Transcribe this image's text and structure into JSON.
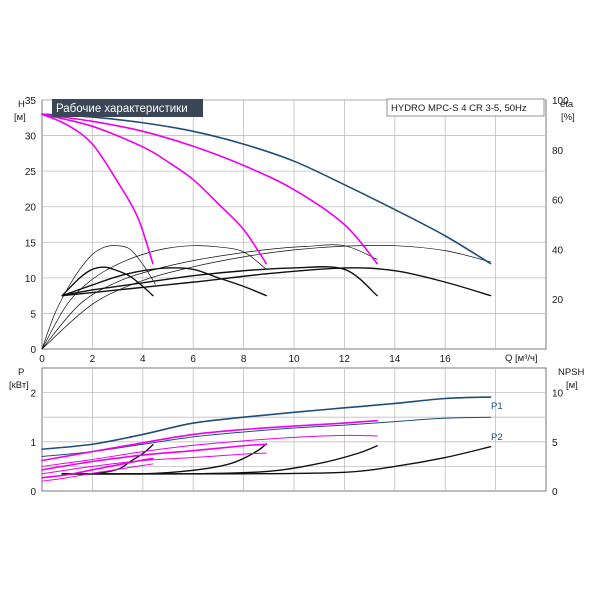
{
  "colors": {
    "navy": "#1f4e79",
    "magenta": "#ee00ee",
    "black": "#111111",
    "grid": "#bfbfbf",
    "title_bg": "#3a4655"
  },
  "chart_data": [
    {
      "type": "line",
      "title": "Рабочие характеристики",
      "model": "HYDRO MPC-S 4 CR 3-5, 50Hz",
      "x_unit_label": "Q [м³/ч]",
      "y_left_label": "H",
      "y_left_unit": "[м]",
      "y_right_label": "eta",
      "y_right_unit": "[%]",
      "xlim": [
        0,
        20
      ],
      "ylim": [
        0,
        35
      ],
      "y_right_lim": [
        0,
        100
      ],
      "x_ticks": [
        "0",
        "2",
        "4",
        "6",
        "8",
        "10",
        "12",
        "14",
        "16"
      ],
      "y_ticks": [
        "0",
        "5",
        "10",
        "15",
        "20",
        "25",
        "30",
        "35"
      ],
      "y_right_ticks": [
        "20",
        "40",
        "60",
        "80",
        "100"
      ],
      "grid": true,
      "head_series": [
        {
          "color": "navy",
          "width": 1.6,
          "points": [
            [
              0,
              33
            ],
            [
              2,
              32.6
            ],
            [
              4,
              31.8
            ],
            [
              6,
              30.6
            ],
            [
              8,
              28.8
            ],
            [
              10,
              26.4
            ],
            [
              12,
              23.1
            ],
            [
              14,
              19.6
            ],
            [
              16,
              15.9
            ],
            [
              17.8,
              12
            ]
          ]
        },
        {
          "color": "magenta",
          "width": 1.6,
          "points": [
            [
              0,
              33
            ],
            [
              2,
              32
            ],
            [
              4,
              30.6
            ],
            [
              6,
              28.5
            ],
            [
              8,
              25.8
            ],
            [
              10,
              22.4
            ],
            [
              12,
              17.5
            ],
            [
              13.3,
              12
            ]
          ]
        },
        {
          "color": "magenta",
          "width": 1.6,
          "points": [
            [
              0,
              33
            ],
            [
              2,
              31.3
            ],
            [
              4,
              28.4
            ],
            [
              5,
              26.3
            ],
            [
              6,
              23.8
            ],
            [
              7,
              20.4
            ],
            [
              8,
              16.8
            ],
            [
              8.9,
              12
            ]
          ]
        },
        {
          "color": "magenta",
          "width": 1.6,
          "points": [
            [
              0,
              33
            ],
            [
              1,
              31.5
            ],
            [
              2,
              28.8
            ],
            [
              3,
              23.5
            ],
            [
              3.8,
              18.5
            ],
            [
              4.4,
              12
            ]
          ]
        }
      ],
      "eta_thin_series": [
        {
          "points": [
            [
              0,
              0
            ],
            [
              0.5,
              14
            ],
            [
              1,
              24
            ],
            [
              1.5,
              32
            ],
            [
              2,
              38
            ],
            [
              2.5,
              41
            ],
            [
              3,
              41.5
            ],
            [
              3.5,
              40
            ],
            [
              4,
              34
            ],
            [
              4.5,
              26
            ]
          ]
        },
        {
          "points": [
            [
              0,
              0
            ],
            [
              1,
              18
            ],
            [
              2,
              28
            ],
            [
              3,
              34
            ],
            [
              4,
              38
            ],
            [
              5,
              40.5
            ],
            [
              6,
              41.5
            ],
            [
              7,
              41
            ],
            [
              8,
              39
            ],
            [
              8.9,
              32
            ]
          ]
        },
        {
          "points": [
            [
              0,
              0
            ],
            [
              1.5,
              18
            ],
            [
              3,
              27
            ],
            [
              4.5,
              32
            ],
            [
              6,
              35.5
            ],
            [
              7.5,
              38
            ],
            [
              9,
              40
            ],
            [
              10.5,
              41.2
            ],
            [
              12,
              41.5
            ],
            [
              13.3,
              36
            ]
          ]
        },
        {
          "points": [
            [
              0,
              0
            ],
            [
              2,
              18
            ],
            [
              4,
              27.5
            ],
            [
              6,
              33
            ],
            [
              8,
              37
            ],
            [
              10,
              39.8
            ],
            [
              12,
              41.3
            ],
            [
              14,
              41.5
            ],
            [
              16,
              39.5
            ],
            [
              17.8,
              35
            ]
          ]
        }
      ],
      "eta_thick_series": [
        {
          "points": [
            [
              0.8,
              7.5
            ],
            [
              1.5,
              10
            ],
            [
              2,
              11.2
            ],
            [
              2.5,
              11.5
            ],
            [
              3,
              11
            ],
            [
              3.5,
              10.2
            ],
            [
              4,
              8.8
            ],
            [
              4.4,
              7.5
            ]
          ]
        },
        {
          "points": [
            [
              0.8,
              7.5
            ],
            [
              2,
              9
            ],
            [
              3,
              10.2
            ],
            [
              4,
              11
            ],
            [
              5,
              11.4
            ],
            [
              6,
              11.2
            ],
            [
              7,
              10
            ],
            [
              8,
              8.8
            ],
            [
              8.9,
              7.5
            ]
          ]
        },
        {
          "points": [
            [
              0.8,
              7.5
            ],
            [
              2,
              8.3
            ],
            [
              4,
              9.3
            ],
            [
              6,
              10.3
            ],
            [
              8,
              11
            ],
            [
              10,
              11.4
            ],
            [
              12,
              11.2
            ],
            [
              13.3,
              7.5
            ]
          ]
        },
        {
          "points": [
            [
              0.8,
              7.5
            ],
            [
              3,
              8.3
            ],
            [
              6,
              9.4
            ],
            [
              9,
              10.6
            ],
            [
              12,
              11.4
            ],
            [
              14,
              11
            ],
            [
              16,
              9.4
            ],
            [
              17.8,
              7.5
            ]
          ]
        }
      ]
    },
    {
      "type": "line",
      "y_left_label": "P",
      "y_left_unit": "[кВт]",
      "y_right_label": "NPSH",
      "y_right_unit": "[м]",
      "xlim": [
        0,
        20
      ],
      "ylim": [
        0,
        2.5
      ],
      "y_right_lim": [
        0,
        12.5
      ],
      "y_ticks": [
        "0",
        "1",
        "2"
      ],
      "y_right_ticks": [
        "0",
        "5",
        "10"
      ],
      "grid": true,
      "series_labels": {
        "p1": "P1",
        "p2": "P2"
      },
      "power_series": [
        {
          "color": "navy",
          "width": 1.6,
          "points": [
            [
              0,
              0.85
            ],
            [
              2,
              0.95
            ],
            [
              4,
              1.15
            ],
            [
              6,
              1.38
            ],
            [
              8,
              1.5
            ],
            [
              10,
              1.6
            ],
            [
              12,
              1.69
            ],
            [
              14,
              1.78
            ],
            [
              16,
              1.88
            ],
            [
              17.8,
              1.91
            ]
          ]
        },
        {
          "color": "navy",
          "width": 1,
          "points": [
            [
              0,
              0.7
            ],
            [
              2,
              0.8
            ],
            [
              4,
              0.95
            ],
            [
              6,
              1.1
            ],
            [
              8,
              1.2
            ],
            [
              10,
              1.28
            ],
            [
              12,
              1.34
            ],
            [
              14,
              1.41
            ],
            [
              16,
              1.48
            ],
            [
              17.8,
              1.5
            ]
          ]
        },
        {
          "color": "magenta",
          "width": 1.6,
          "points": [
            [
              0,
              0.62
            ],
            [
              2,
              0.8
            ],
            [
              4,
              0.98
            ],
            [
              6,
              1.15
            ],
            [
              8,
              1.25
            ],
            [
              10,
              1.32
            ],
            [
              12,
              1.38
            ],
            [
              13.3,
              1.43
            ]
          ]
        },
        {
          "color": "magenta",
          "width": 1,
          "points": [
            [
              0,
              0.5
            ],
            [
              2,
              0.64
            ],
            [
              4,
              0.8
            ],
            [
              6,
              0.93
            ],
            [
              8,
              1.02
            ],
            [
              10,
              1.09
            ],
            [
              12,
              1.13
            ],
            [
              13.3,
              1.12
            ]
          ]
        },
        {
          "color": "magenta",
          "width": 1.6,
          "points": [
            [
              0,
              0.43
            ],
            [
              2,
              0.6
            ],
            [
              4,
              0.73
            ],
            [
              6,
              0.82
            ],
            [
              8,
              0.92
            ],
            [
              8.9,
              0.95
            ]
          ]
        },
        {
          "color": "magenta",
          "width": 1,
          "points": [
            [
              0,
              0.35
            ],
            [
              2,
              0.5
            ],
            [
              4,
              0.62
            ],
            [
              6,
              0.68
            ],
            [
              8,
              0.75
            ],
            [
              8.9,
              0.77
            ]
          ]
        },
        {
          "color": "magenta",
          "width": 1.6,
          "points": [
            [
              0,
              0.27
            ],
            [
              1,
              0.33
            ],
            [
              2,
              0.43
            ],
            [
              3,
              0.53
            ],
            [
              4,
              0.63
            ],
            [
              4.4,
              0.66
            ]
          ]
        },
        {
          "color": "magenta",
          "width": 1,
          "points": [
            [
              0,
              0.2
            ],
            [
              1,
              0.27
            ],
            [
              2,
              0.36
            ],
            [
              3,
              0.44
            ],
            [
              4,
              0.52
            ],
            [
              4.4,
              0.55
            ]
          ]
        }
      ],
      "npsh_series": [
        {
          "points": [
            [
              0.8,
              1.75
            ],
            [
              2,
              1.75
            ],
            [
              3,
              2.2
            ],
            [
              3.5,
              3
            ],
            [
              4,
              3.8
            ],
            [
              4.4,
              4.7
            ]
          ]
        },
        {
          "points": [
            [
              0.8,
              1.75
            ],
            [
              4,
              1.75
            ],
            [
              6,
              2.1
            ],
            [
              7.5,
              2.8
            ],
            [
              8.5,
              4
            ],
            [
              8.9,
              4.8
            ]
          ]
        },
        {
          "points": [
            [
              0.8,
              1.75
            ],
            [
              6,
              1.75
            ],
            [
              9,
              2
            ],
            [
              11,
              2.8
            ],
            [
              12.5,
              3.8
            ],
            [
              13.3,
              4.6
            ]
          ]
        },
        {
          "points": [
            [
              0.8,
              1.75
            ],
            [
              8,
              1.75
            ],
            [
              12,
              1.9
            ],
            [
              14,
              2.5
            ],
            [
              16,
              3.4
            ],
            [
              17.8,
              4.5
            ]
          ]
        }
      ]
    }
  ]
}
